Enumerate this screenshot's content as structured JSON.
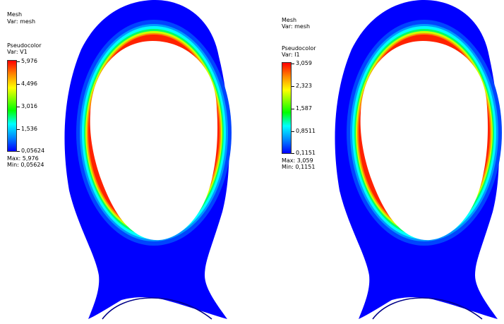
{
  "panels": [
    {
      "mesh_title": "Mesh",
      "mesh_var": "Var: mesh",
      "pseudocolor_title": "Pseudocolor",
      "pseudocolor_var": "Var: V1",
      "ticks": [
        "5,976",
        "4,496",
        "3,016",
        "1,536",
        "0,05624"
      ],
      "max_text": "Max: 5,976",
      "min_text": "Min: 0,05624"
    },
    {
      "mesh_title": "Mesh",
      "mesh_var": "Var: mesh",
      "pseudocolor_title": "Pseudocolor",
      "pseudocolor_var": "Var: I1",
      "ticks": [
        "3,059",
        "2,323",
        "1,587",
        "0,8511",
        "0,1151"
      ],
      "max_text": "Max: 3,059",
      "min_text": "Min: 0,1151"
    }
  ],
  "colors": {
    "blue": "#0000ff",
    "cyan": "#00ffff",
    "green": "#00ff00",
    "yellow": "#ffff00",
    "orange": "#ff8800",
    "red": "#ff0000"
  }
}
